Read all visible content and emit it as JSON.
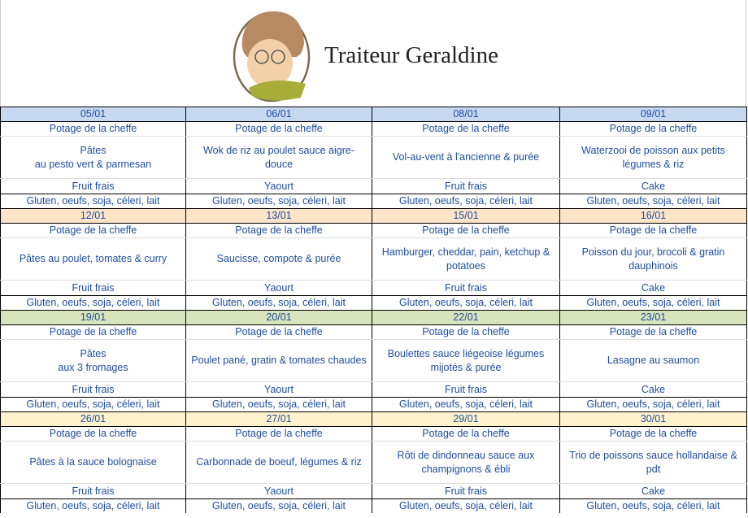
{
  "header": {
    "brand": "Traiteur Geraldine"
  },
  "week_colors": [
    "#c6d9f1",
    "#fce4c8",
    "#d8e4bc",
    "#fff2cc"
  ],
  "weeks": [
    {
      "days": [
        {
          "date": "05/01",
          "soup": "Potage de la cheffe",
          "main": "Pâtes\nau pesto vert & parmesan",
          "dessert": "Fruit frais",
          "allergens": "Gluten, oeufs, soja, céleri, lait"
        },
        {
          "date": "06/01",
          "soup": "Potage de la cheffe",
          "main": "Wok de riz au poulet sauce aigre-douce",
          "dessert": "Yaourt",
          "allergens": "Gluten, oeufs, soja, céleri, lait"
        },
        {
          "date": "08/01",
          "soup": "Potage de la cheffe",
          "main": "Vol-au-vent à l'ancienne & purée",
          "dessert": "Fruit frais",
          "allergens": "Gluten, oeufs, soja, céleri, lait"
        },
        {
          "date": "09/01",
          "soup": "Potage de la cheffe",
          "main": "Waterzooi de poisson aux petits légumes & riz",
          "dessert": "Cake",
          "allergens": "Gluten, oeufs, soja, céleri, lait"
        }
      ]
    },
    {
      "days": [
        {
          "date": "12/01",
          "soup": "Potage de la cheffe",
          "main": "Pâtes au poulet, tomates & curry",
          "dessert": "Fruit frais",
          "allergens": "Gluten, oeufs, soja, céleri, lait"
        },
        {
          "date": "13/01",
          "soup": "Potage de la cheffe",
          "main": "Saucisse, compote & purée",
          "dessert": "Yaourt",
          "allergens": "Gluten, oeufs, soja, céleri, lait"
        },
        {
          "date": "15/01",
          "soup": "Potage de la cheffe",
          "main": "Hamburger, cheddar, pain, ketchup & potatoes",
          "dessert": "Fruit frais",
          "allergens": "Gluten, oeufs, soja, céleri, lait"
        },
        {
          "date": "16/01",
          "soup": "Potage de la cheffe",
          "main": "Poisson du jour, brocoli & gratin dauphinois",
          "dessert": "Cake",
          "allergens": "Gluten, oeufs, soja, céleri, lait"
        }
      ]
    },
    {
      "days": [
        {
          "date": "19/01",
          "soup": "Potage de la cheffe",
          "main": "Pâtes\naux 3 fromages",
          "dessert": "Fruit frais",
          "allergens": "Gluten, oeufs, soja, céleri, lait"
        },
        {
          "date": "20/01",
          "soup": "Potage de la cheffe",
          "main": "Poulet pané, gratin & tomates chaudes",
          "dessert": "Yaourt",
          "allergens": "Gluten, oeufs, soja, céleri, lait"
        },
        {
          "date": "22/01",
          "soup": "Potage de la cheffe",
          "main": "Boulettes sauce liégeoise légumes mijotés & purée",
          "dessert": "Fruit frais",
          "allergens": "Gluten, oeufs, soja, céleri, lait"
        },
        {
          "date": "23/01",
          "soup": "Potage de la cheffe",
          "main": "Lasagne au saumon",
          "dessert": "Cake",
          "allergens": "Gluten, oeufs, soja, céleri, lait"
        }
      ]
    },
    {
      "days": [
        {
          "date": "26/01",
          "soup": "Potage de la cheffe",
          "main": "Pâtes à la sauce bolognaise",
          "dessert": "Fruit frais",
          "allergens": "Gluten, oeufs, soja, céleri, lait"
        },
        {
          "date": "27/01",
          "soup": "Potage de la cheffe",
          "main": "Carbonnade de boeuf, légumes & riz",
          "dessert": "Yaourt",
          "allergens": "Gluten, oeufs, soja, céleri, lait"
        },
        {
          "date": "29/01",
          "soup": "Potage de la cheffe",
          "main": "Rôti de dindonneau sauce aux champignons & ébli",
          "dessert": "Fruit frais",
          "allergens": "Gluten, oeufs, soja, céleri, lait"
        },
        {
          "date": "30/01",
          "soup": "Potage de la cheffe",
          "main": "Trio de poissons sauce hollandaise & pdt",
          "dessert": "Cake",
          "allergens": "Gluten, oeufs, soja, céleri, lait"
        }
      ]
    }
  ]
}
